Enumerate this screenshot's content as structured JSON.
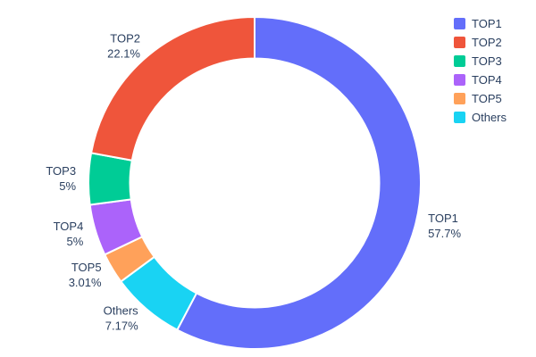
{
  "chart_data": {
    "type": "pie",
    "hole": 0.75,
    "labels": [
      "TOP1",
      "TOP2",
      "TOP3",
      "TOP4",
      "TOP5",
      "Others"
    ],
    "values": [
      57.7,
      22.1,
      5,
      5,
      3.01,
      7.17
    ],
    "percent_labels": [
      "57.7%",
      "22.1%",
      "5%",
      "5%",
      "3.01%",
      "7.17%"
    ],
    "colors": [
      "#636EFA",
      "#EF553B",
      "#00CC96",
      "#AB63FA",
      "#FFA15A",
      "#19D3F3"
    ],
    "title": "",
    "text_position": "outside",
    "legend_position": "right",
    "background_color": "#ffffff",
    "text_color": "#2a3f5f",
    "slice_separator_color": "#ffffff"
  }
}
